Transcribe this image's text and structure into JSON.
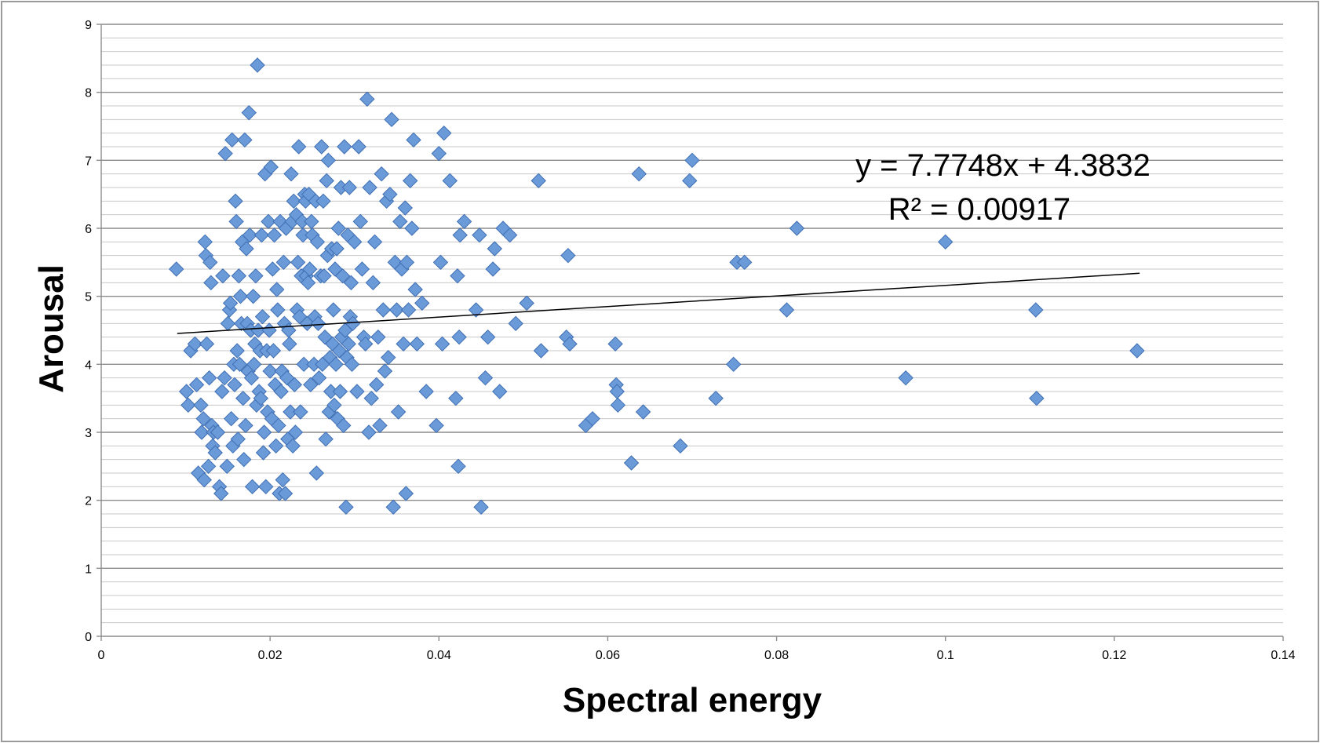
{
  "chart_data": {
    "type": "scatter",
    "title": "",
    "xlabel": "Spectral energy",
    "ylabel": "Arousal",
    "xlim": [
      0,
      0.14
    ],
    "ylim": [
      0,
      9
    ],
    "x_ticks": [
      "0",
      "0.02",
      "0.04",
      "0.06",
      "0.08",
      "0.1",
      "0.12",
      "0.14"
    ],
    "y_ticks": [
      "0",
      "1",
      "2",
      "3",
      "4",
      "5",
      "6",
      "7",
      "8",
      "9"
    ],
    "grid": "horizontal",
    "legend": "none",
    "marker": "diamond",
    "marker_color": "#6a9ad8",
    "marker_edge": "#3f6fb3",
    "trendline": {
      "type": "linear",
      "slope": 7.7748,
      "intercept": 4.3832,
      "x_range": [
        0.009,
        0.123
      ],
      "equation_label": "y = 7.7748x + 4.3832",
      "r2_label": "R² = 0.00917"
    },
    "points": [
      [
        0.0089,
        5.4
      ],
      [
        0.0101,
        3.6
      ],
      [
        0.0103,
        3.4
      ],
      [
        0.0106,
        4.2
      ],
      [
        0.0111,
        4.3
      ],
      [
        0.0113,
        3.7
      ],
      [
        0.0115,
        2.4
      ],
      [
        0.0118,
        3.4
      ],
      [
        0.0119,
        3.0
      ],
      [
        0.0121,
        3.2
      ],
      [
        0.0122,
        2.3
      ],
      [
        0.0123,
        5.8
      ],
      [
        0.0124,
        5.6
      ],
      [
        0.0125,
        4.3
      ],
      [
        0.0127,
        2.5
      ],
      [
        0.0128,
        3.8
      ],
      [
        0.0129,
        5.5
      ],
      [
        0.013,
        5.2
      ],
      [
        0.0131,
        3.1
      ],
      [
        0.0132,
        2.8
      ],
      [
        0.0133,
        3.0
      ],
      [
        0.0135,
        2.7
      ],
      [
        0.0138,
        3.0
      ],
      [
        0.014,
        2.2
      ],
      [
        0.0142,
        2.1
      ],
      [
        0.0143,
        3.6
      ],
      [
        0.0144,
        5.3
      ],
      [
        0.0146,
        3.8
      ],
      [
        0.0147,
        7.1
      ],
      [
        0.0149,
        2.5
      ],
      [
        0.015,
        4.6
      ],
      [
        0.0152,
        4.8
      ],
      [
        0.0153,
        4.9
      ],
      [
        0.0154,
        3.2
      ],
      [
        0.0155,
        7.3
      ],
      [
        0.0156,
        2.8
      ],
      [
        0.0157,
        4.0
      ],
      [
        0.0158,
        3.7
      ],
      [
        0.0159,
        6.4
      ],
      [
        0.016,
        6.1
      ],
      [
        0.0161,
        4.2
      ],
      [
        0.0162,
        2.9
      ],
      [
        0.0163,
        5.3
      ],
      [
        0.0164,
        4.0
      ],
      [
        0.0165,
        5.0
      ],
      [
        0.0166,
        4.6
      ],
      [
        0.0167,
        5.8
      ],
      [
        0.0168,
        3.5
      ],
      [
        0.0169,
        2.6
      ],
      [
        0.017,
        7.3
      ],
      [
        0.0171,
        3.1
      ],
      [
        0.0172,
        5.7
      ],
      [
        0.0173,
        4.6
      ],
      [
        0.0174,
        3.9
      ],
      [
        0.0175,
        7.7
      ],
      [
        0.0176,
        5.9
      ],
      [
        0.0177,
        4.5
      ],
      [
        0.0178,
        3.8
      ],
      [
        0.0179,
        2.2
      ],
      [
        0.018,
        5.0
      ],
      [
        0.0181,
        4.0
      ],
      [
        0.0182,
        4.3
      ],
      [
        0.0183,
        5.3
      ],
      [
        0.0184,
        3.4
      ],
      [
        0.0185,
        8.4
      ],
      [
        0.0186,
        4.5
      ],
      [
        0.0187,
        3.6
      ],
      [
        0.0188,
        4.2
      ],
      [
        0.0189,
        3.5
      ],
      [
        0.019,
        5.9
      ],
      [
        0.0191,
        4.7
      ],
      [
        0.0192,
        2.7
      ],
      [
        0.0193,
        3.0
      ],
      [
        0.0194,
        6.8
      ],
      [
        0.0195,
        2.2
      ],
      [
        0.0196,
        4.2
      ],
      [
        0.0197,
        3.3
      ],
      [
        0.0198,
        6.1
      ],
      [
        0.0199,
        4.5
      ],
      [
        0.02,
        3.9
      ],
      [
        0.0201,
        6.9
      ],
      [
        0.0202,
        3.2
      ],
      [
        0.0203,
        5.4
      ],
      [
        0.0204,
        4.2
      ],
      [
        0.0205,
        5.9
      ],
      [
        0.0206,
        3.7
      ],
      [
        0.0207,
        2.8
      ],
      [
        0.0208,
        5.1
      ],
      [
        0.0209,
        4.8
      ],
      [
        0.021,
        3.1
      ],
      [
        0.0211,
        2.1
      ],
      [
        0.0212,
        6.1
      ],
      [
        0.0213,
        3.6
      ],
      [
        0.0214,
        3.9
      ],
      [
        0.0215,
        2.3
      ],
      [
        0.0216,
        5.5
      ],
      [
        0.0217,
        4.6
      ],
      [
        0.0218,
        2.1
      ],
      [
        0.0219,
        6.0
      ],
      [
        0.022,
        3.8
      ],
      [
        0.0221,
        2.9
      ],
      [
        0.0222,
        4.5
      ],
      [
        0.0223,
        4.3
      ],
      [
        0.0224,
        3.3
      ],
      [
        0.0225,
        6.8
      ],
      [
        0.0226,
        6.1
      ],
      [
        0.0227,
        2.8
      ],
      [
        0.0228,
        6.4
      ],
      [
        0.0229,
        3.7
      ],
      [
        0.023,
        3.0
      ],
      [
        0.0231,
        6.2
      ],
      [
        0.0232,
        4.8
      ],
      [
        0.0233,
        5.5
      ],
      [
        0.0234,
        7.2
      ],
      [
        0.0235,
        4.7
      ],
      [
        0.0236,
        3.3
      ],
      [
        0.0237,
        5.3
      ],
      [
        0.0238,
        6.1
      ],
      [
        0.0239,
        5.9
      ],
      [
        0.024,
        4.0
      ],
      [
        0.0241,
        6.5
      ],
      [
        0.0242,
        6.4
      ],
      [
        0.0243,
        5.3
      ],
      [
        0.0244,
        4.6
      ],
      [
        0.0245,
        5.2
      ],
      [
        0.0246,
        6.5
      ],
      [
        0.0247,
        5.4
      ],
      [
        0.0248,
        3.7
      ],
      [
        0.0249,
        6.1
      ],
      [
        0.025,
        5.9
      ],
      [
        0.0252,
        4.0
      ],
      [
        0.0253,
        4.7
      ],
      [
        0.0254,
        6.4
      ],
      [
        0.0255,
        2.4
      ],
      [
        0.0256,
        5.8
      ],
      [
        0.0257,
        4.6
      ],
      [
        0.0258,
        3.8
      ],
      [
        0.026,
        5.3
      ],
      [
        0.0261,
        7.2
      ],
      [
        0.0262,
        4.0
      ],
      [
        0.0263,
        6.4
      ],
      [
        0.0264,
        5.3
      ],
      [
        0.0265,
        4.4
      ],
      [
        0.0266,
        2.9
      ],
      [
        0.0267,
        6.7
      ],
      [
        0.0268,
        5.6
      ],
      [
        0.0269,
        7.0
      ],
      [
        0.027,
        3.3
      ],
      [
        0.0271,
        4.1
      ],
      [
        0.0272,
        3.6
      ],
      [
        0.0273,
        5.7
      ],
      [
        0.0274,
        4.3
      ],
      [
        0.0275,
        4.8
      ],
      [
        0.0276,
        3.4
      ],
      [
        0.0277,
        5.4
      ],
      [
        0.0278,
        4.0
      ],
      [
        0.0279,
        5.7
      ],
      [
        0.028,
        3.2
      ],
      [
        0.0281,
        6.0
      ],
      [
        0.0282,
        4.2
      ],
      [
        0.0283,
        3.6
      ],
      [
        0.0284,
        6.6
      ],
      [
        0.0285,
        4.4
      ],
      [
        0.0286,
        5.3
      ],
      [
        0.0287,
        3.1
      ],
      [
        0.0288,
        7.2
      ],
      [
        0.0289,
        4.5
      ],
      [
        0.029,
        1.9
      ],
      [
        0.0291,
        4.1
      ],
      [
        0.0292,
        5.9
      ],
      [
        0.0293,
        4.3
      ],
      [
        0.0294,
        6.6
      ],
      [
        0.0295,
        4.7
      ],
      [
        0.0296,
        5.2
      ],
      [
        0.0297,
        4.0
      ],
      [
        0.0298,
        4.6
      ],
      [
        0.03,
        5.8
      ],
      [
        0.0303,
        3.6
      ],
      [
        0.0305,
        7.2
      ],
      [
        0.0307,
        6.1
      ],
      [
        0.0309,
        5.4
      ],
      [
        0.0311,
        4.4
      ],
      [
        0.0313,
        4.3
      ],
      [
        0.0315,
        7.9
      ],
      [
        0.0317,
        3.0
      ],
      [
        0.0318,
        6.6
      ],
      [
        0.032,
        3.5
      ],
      [
        0.0322,
        5.2
      ],
      [
        0.0324,
        5.8
      ],
      [
        0.0326,
        3.7
      ],
      [
        0.0328,
        4.4
      ],
      [
        0.033,
        3.1
      ],
      [
        0.0332,
        6.8
      ],
      [
        0.0334,
        4.8
      ],
      [
        0.0336,
        3.9
      ],
      [
        0.0338,
        6.4
      ],
      [
        0.034,
        4.1
      ],
      [
        0.0342,
        6.5
      ],
      [
        0.0344,
        7.6
      ],
      [
        0.0346,
        1.9
      ],
      [
        0.0348,
        5.5
      ],
      [
        0.035,
        4.8
      ],
      [
        0.0352,
        3.3
      ],
      [
        0.0354,
        6.1
      ],
      [
        0.0356,
        5.4
      ],
      [
        0.0358,
        4.3
      ],
      [
        0.036,
        6.3
      ],
      [
        0.0361,
        2.1
      ],
      [
        0.0362,
        5.5
      ],
      [
        0.0364,
        4.8
      ],
      [
        0.0366,
        6.7
      ],
      [
        0.0368,
        6.0
      ],
      [
        0.037,
        7.3
      ],
      [
        0.0372,
        5.1
      ],
      [
        0.0374,
        4.3
      ],
      [
        0.038,
        4.9
      ],
      [
        0.0385,
        3.6
      ],
      [
        0.0397,
        3.1
      ],
      [
        0.04,
        7.1
      ],
      [
        0.0402,
        5.5
      ],
      [
        0.0404,
        4.3
      ],
      [
        0.0406,
        7.4
      ],
      [
        0.0413,
        6.7
      ],
      [
        0.042,
        3.5
      ],
      [
        0.0422,
        5.3
      ],
      [
        0.0423,
        2.5
      ],
      [
        0.0424,
        4.4
      ],
      [
        0.0425,
        5.9
      ],
      [
        0.043,
        6.1
      ],
      [
        0.0444,
        4.8
      ],
      [
        0.0448,
        5.9
      ],
      [
        0.045,
        1.9
      ],
      [
        0.0455,
        3.8
      ],
      [
        0.0458,
        4.4
      ],
      [
        0.0464,
        5.4
      ],
      [
        0.0466,
        5.7
      ],
      [
        0.0472,
        3.6
      ],
      [
        0.0476,
        6.0
      ],
      [
        0.0484,
        5.9
      ],
      [
        0.0491,
        4.6
      ],
      [
        0.0504,
        4.9
      ],
      [
        0.0518,
        6.7
      ],
      [
        0.0521,
        4.2
      ],
      [
        0.0551,
        4.4
      ],
      [
        0.0553,
        5.6
      ],
      [
        0.0555,
        4.3
      ],
      [
        0.0574,
        3.1
      ],
      [
        0.0582,
        3.2
      ],
      [
        0.0609,
        4.3
      ],
      [
        0.061,
        3.7
      ],
      [
        0.0611,
        3.6
      ],
      [
        0.0612,
        3.4
      ],
      [
        0.0628,
        2.55
      ],
      [
        0.0637,
        6.8
      ],
      [
        0.0642,
        3.3
      ],
      [
        0.0686,
        2.8
      ],
      [
        0.0697,
        6.7
      ],
      [
        0.07,
        7.0
      ],
      [
        0.0728,
        3.5
      ],
      [
        0.0749,
        4.0
      ],
      [
        0.0753,
        5.5
      ],
      [
        0.0762,
        5.5
      ],
      [
        0.0812,
        4.8
      ],
      [
        0.0824,
        6.0
      ],
      [
        0.0953,
        3.8
      ],
      [
        0.1,
        5.8
      ],
      [
        0.1107,
        4.8
      ],
      [
        0.1108,
        3.5
      ],
      [
        0.1227,
        4.2
      ]
    ]
  }
}
